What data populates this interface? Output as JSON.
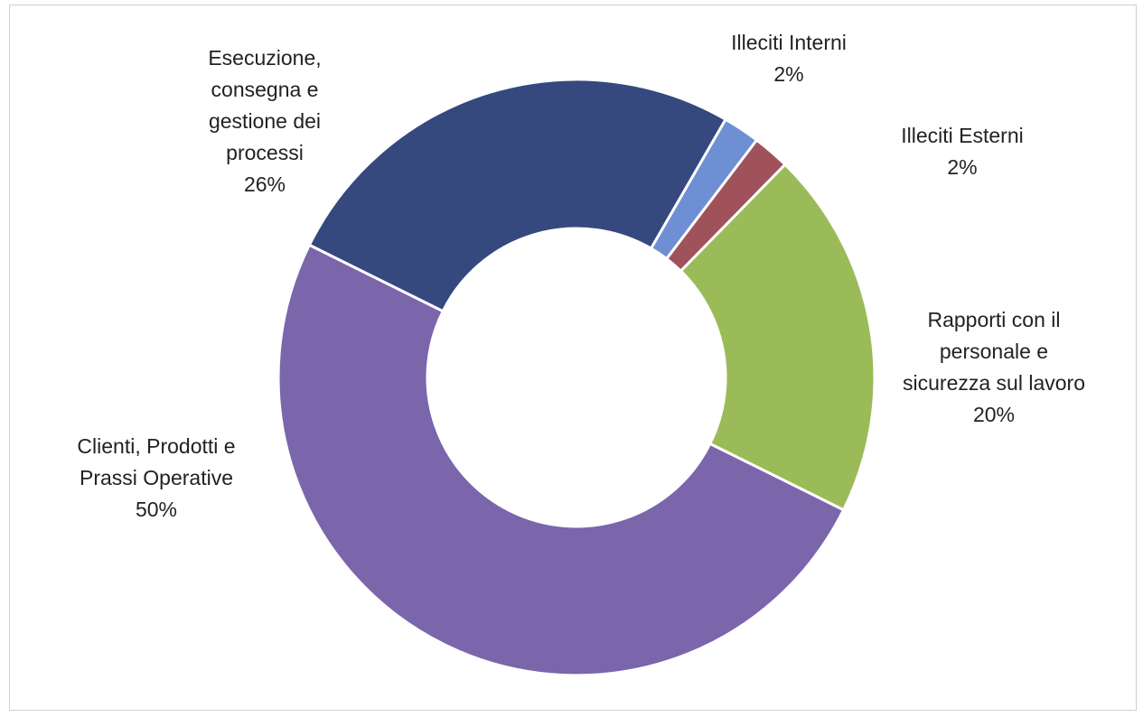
{
  "chart_data": {
    "type": "doughnut",
    "categories": [
      "Illeciti Interni",
      "Illeciti Esterni",
      "Rapporti con il personale e sicurezza sul lavoro",
      "Clienti, Prodotti e Prassi Operative",
      "Esecuzione, consegna e gestione dei processi"
    ],
    "values": [
      2,
      2,
      20,
      50,
      26
    ],
    "value_labels": [
      "2%",
      "2%",
      "20%",
      "50%",
      "26%"
    ],
    "colors": [
      "#6f8fd4",
      "#a0525a",
      "#9bbb59",
      "#7b65ab",
      "#35497f"
    ]
  }
}
